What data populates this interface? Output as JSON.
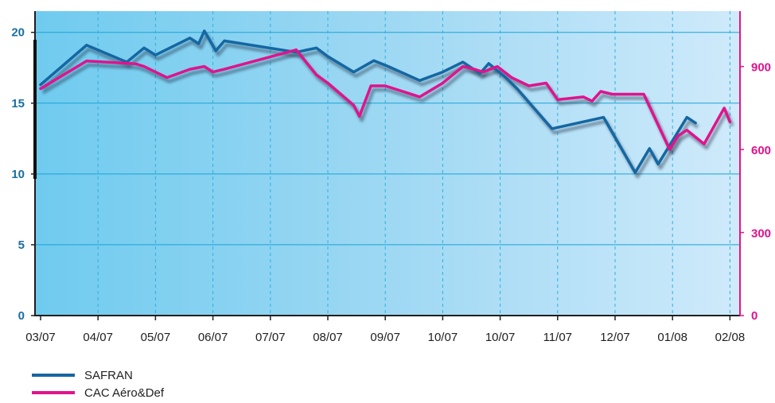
{
  "chart_data": {
    "type": "line",
    "title": "",
    "xlabel": "",
    "categories": [
      "03/07",
      "04/07",
      "05/07",
      "06/07",
      "07/07",
      "08/07",
      "09/07",
      "10/07",
      "10/07",
      "11/07",
      "12/07",
      "01/08",
      "02/08"
    ],
    "y_left": {
      "ticks": [
        "0",
        "5",
        "10",
        "15",
        "20"
      ],
      "ylim": [
        0,
        21.5
      ],
      "color": "#1a6fa0"
    },
    "y_right": {
      "ticks": [
        "0",
        "300",
        "600",
        "900"
      ],
      "ylim": [
        0,
        1100
      ],
      "color": "#e0138c"
    },
    "grid": true,
    "legend_position": "bottom-left",
    "series": [
      {
        "name": "SAFRAN",
        "axis": "left",
        "color": "#1467a2",
        "x": [
          0,
          0.8,
          1.5,
          1.8,
          2.0,
          2.6,
          2.75,
          2.85,
          3.05,
          3.2,
          4.45,
          4.8,
          5.0,
          5.45,
          5.8,
          6.05,
          6.6,
          7.0,
          7.35,
          7.65,
          7.8,
          8.1,
          8.3,
          8.9,
          9.8,
          10.35,
          10.6,
          10.75,
          11.25,
          11.4
        ],
        "values": [
          16.3,
          19.1,
          17.9,
          18.9,
          18.4,
          19.6,
          19.2,
          20.1,
          18.7,
          19.4,
          18.6,
          18.9,
          18.3,
          17.2,
          18.0,
          17.6,
          16.6,
          17.2,
          17.9,
          17.1,
          17.8,
          16.8,
          16.0,
          13.2,
          14.0,
          10.1,
          11.8,
          10.7,
          14.0,
          13.6
        ]
      },
      {
        "name": "CAC Aéro&Def",
        "axis": "right",
        "color": "#e0138c",
        "x": [
          0,
          0.8,
          1.65,
          1.8,
          2.0,
          2.2,
          2.6,
          2.85,
          3.0,
          3.2,
          4.45,
          4.8,
          5.0,
          5.45,
          5.55,
          5.75,
          6.0,
          6.6,
          7.0,
          7.35,
          7.55,
          7.7,
          7.95,
          8.2,
          8.5,
          8.8,
          9.0,
          9.45,
          9.6,
          9.75,
          9.95,
          10.5,
          10.95,
          11.1,
          11.25,
          11.55,
          11.9,
          12.0
        ],
        "values": [
          820,
          920,
          910,
          900,
          880,
          860,
          890,
          900,
          880,
          890,
          960,
          870,
          840,
          760,
          720,
          830,
          830,
          790,
          840,
          900,
          890,
          880,
          900,
          860,
          830,
          840,
          780,
          790,
          775,
          810,
          800,
          800,
          600,
          650,
          670,
          620,
          750,
          700
        ]
      }
    ]
  }
}
